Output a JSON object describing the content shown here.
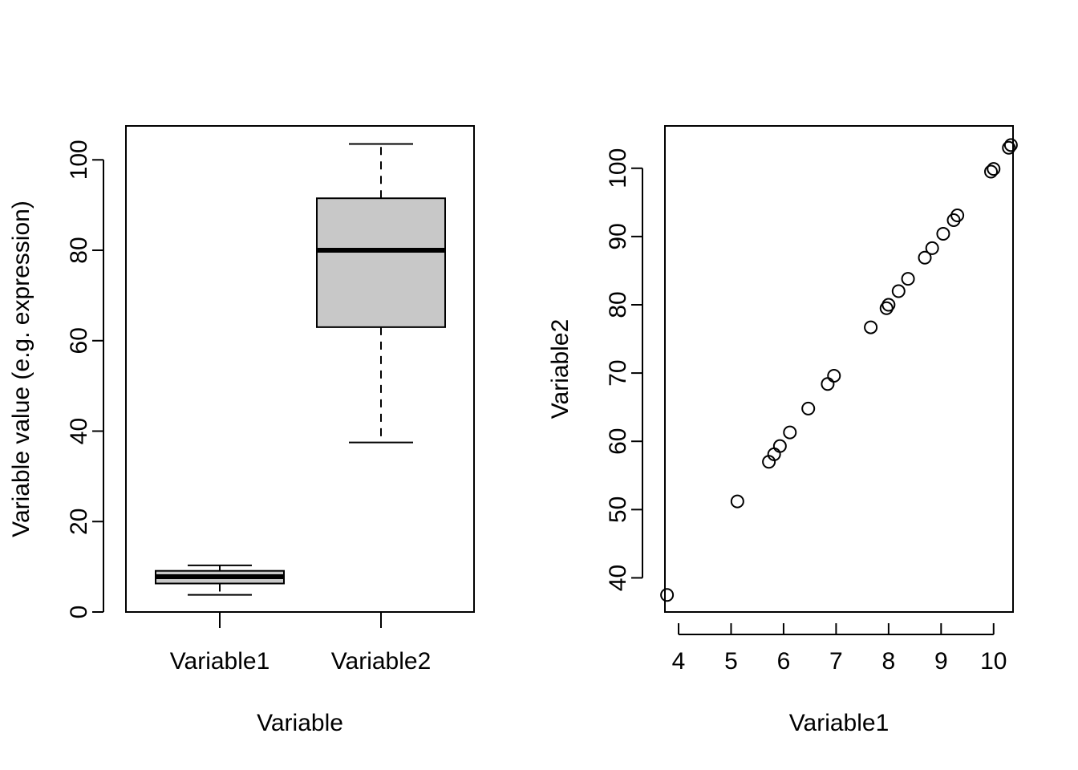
{
  "chart_data": [
    {
      "type": "box",
      "xlabel": "Variable",
      "ylabel": "Variable value (e.g. expression)",
      "categories": [
        "Variable1",
        "Variable2"
      ],
      "boxes": [
        {
          "name": "Variable1",
          "whisker_low": 3.8,
          "q1": 6.3,
          "median": 7.8,
          "q3": 9.1,
          "whisker_high": 10.3
        },
        {
          "name": "Variable2",
          "whisker_low": 37.5,
          "q1": 63.0,
          "median": 80.0,
          "q3": 91.5,
          "whisker_high": 103.5
        }
      ],
      "y_ticks": [
        "0",
        "20",
        "40",
        "60",
        "80",
        "100"
      ],
      "ylim": [
        0,
        107.5
      ],
      "fill_color": "#c8c8c8",
      "grid": false
    },
    {
      "type": "scatter",
      "xlabel": "Variable1",
      "ylabel": "Variable2",
      "x_ticks": [
        "4",
        "5",
        "6",
        "7",
        "8",
        "9",
        "10"
      ],
      "y_ticks": [
        "40",
        "50",
        "60",
        "70",
        "80",
        "90",
        "100"
      ],
      "xlim": [
        3.74,
        10.37
      ],
      "ylim": [
        35,
        106.2
      ],
      "marker": "open-circle",
      "grid": false,
      "points": [
        {
          "x": 3.78,
          "y": 37.5
        },
        {
          "x": 5.12,
          "y": 51.2
        },
        {
          "x": 5.72,
          "y": 57.0
        },
        {
          "x": 5.82,
          "y": 58.1
        },
        {
          "x": 5.93,
          "y": 59.3
        },
        {
          "x": 6.12,
          "y": 61.3
        },
        {
          "x": 6.47,
          "y": 64.8
        },
        {
          "x": 6.84,
          "y": 68.4
        },
        {
          "x": 6.96,
          "y": 69.6
        },
        {
          "x": 7.66,
          "y": 76.7
        },
        {
          "x": 7.96,
          "y": 79.5
        },
        {
          "x": 8.0,
          "y": 80.0
        },
        {
          "x": 8.19,
          "y": 82.0
        },
        {
          "x": 8.37,
          "y": 83.8
        },
        {
          "x": 8.69,
          "y": 86.9
        },
        {
          "x": 8.83,
          "y": 88.3
        },
        {
          "x": 9.04,
          "y": 90.4
        },
        {
          "x": 9.24,
          "y": 92.4
        },
        {
          "x": 9.31,
          "y": 93.1
        },
        {
          "x": 9.95,
          "y": 99.5
        },
        {
          "x": 10.0,
          "y": 99.9
        },
        {
          "x": 10.29,
          "y": 103.0
        },
        {
          "x": 10.33,
          "y": 103.4
        }
      ]
    }
  ]
}
